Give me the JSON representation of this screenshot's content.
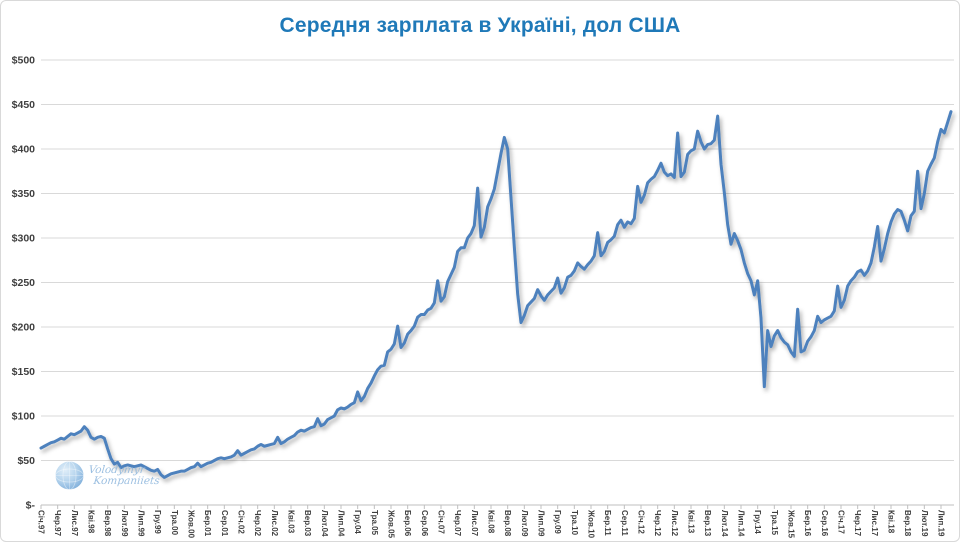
{
  "chart_data": {
    "type": "line",
    "title": "Середня зарплата в Україні, дол США",
    "ylim": [
      0,
      500
    ],
    "grid": "horizontal",
    "legend": "none",
    "y_ticks": [
      0,
      50,
      100,
      150,
      200,
      250,
      300,
      350,
      400,
      450,
      500
    ],
    "y_tick_labels": [
      "$-",
      "$50",
      "$100",
      "$150",
      "$200",
      "$250",
      "$300",
      "$350",
      "$400",
      "$450",
      "$500"
    ],
    "x_label_step_months": 5,
    "x_labels": [
      "Січ.97",
      "Чер.97",
      "Лис.97",
      "Кві.98",
      "Вер.98",
      "Лют.99",
      "Лип.99",
      "Гру.99",
      "Тра.00",
      "Жов.00",
      "Бер.01",
      "Сер.01",
      "Січ.02",
      "Чер.02",
      "Лис.02",
      "Кві.03",
      "Вер.03",
      "Лют.04",
      "Лип.04",
      "Гру.04",
      "Тра.05",
      "Жов.05",
      "Бер.06",
      "Сер.06",
      "Січ.07",
      "Чер.07",
      "Лис.07",
      "Кві.08",
      "Вер.08",
      "Лют.09",
      "Лип.09",
      "Гру.09",
      "Тра.10",
      "Жов.10",
      "Бер.11",
      "Сер.11",
      "Січ.12",
      "Чер.12",
      "Лис.12",
      "Кві.13",
      "Вер.13",
      "Лют.14",
      "Лип.14",
      "Гру.14",
      "Тра.15",
      "Жов.15",
      "Бер.16",
      "Сер.16",
      "Січ.17",
      "Чер.17",
      "Лис.17",
      "Кві.18",
      "Вер.18",
      "Лют.19",
      "Лип.19"
    ],
    "values": [
      64,
      66,
      68,
      70,
      71,
      73,
      75,
      74,
      77,
      80,
      79,
      81,
      83,
      88,
      84,
      76,
      74,
      76,
      77,
      75,
      63,
      52,
      46,
      48,
      42,
      44,
      45,
      44,
      43,
      44,
      45,
      43,
      41,
      39,
      38,
      40,
      34,
      31,
      33,
      35,
      36,
      37,
      38,
      38,
      40,
      42,
      43,
      47,
      43,
      45,
      47,
      48,
      50,
      52,
      53,
      52,
      53,
      54,
      56,
      61,
      56,
      58,
      60,
      62,
      63,
      66,
      68,
      66,
      67,
      68,
      69,
      76,
      69,
      71,
      74,
      76,
      78,
      82,
      84,
      83,
      85,
      87,
      88,
      97,
      89,
      91,
      96,
      98,
      100,
      107,
      109,
      108,
      110,
      113,
      115,
      127,
      117,
      122,
      131,
      137,
      145,
      152,
      156,
      157,
      172,
      175,
      181,
      201,
      177,
      182,
      192,
      196,
      201,
      211,
      214,
      214,
      219,
      221,
      227,
      252,
      229,
      234,
      251,
      259,
      267,
      285,
      289,
      289,
      300,
      305,
      314,
      356,
      301,
      312,
      335,
      344,
      355,
      375,
      395,
      413,
      400,
      345,
      290,
      237,
      205,
      213,
      224,
      228,
      232,
      242,
      235,
      230,
      236,
      240,
      244,
      255,
      238,
      244,
      256,
      258,
      263,
      272,
      268,
      265,
      270,
      274,
      280,
      306,
      280,
      285,
      295,
      298,
      302,
      315,
      320,
      312,
      318,
      316,
      322,
      358,
      340,
      348,
      362,
      366,
      369,
      376,
      384,
      374,
      370,
      372,
      368,
      418,
      369,
      374,
      394,
      398,
      400,
      420,
      408,
      400,
      405,
      406,
      410,
      437,
      383,
      351,
      315,
      293,
      305,
      297,
      287,
      272,
      260,
      252,
      236,
      252,
      210,
      133,
      196,
      178,
      190,
      196,
      188,
      183,
      180,
      172,
      167,
      220,
      172,
      174,
      184,
      189,
      196,
      212,
      205,
      208,
      210,
      212,
      218,
      246,
      222,
      230,
      246,
      252,
      256,
      262,
      264,
      258,
      263,
      272,
      290,
      313,
      274,
      288,
      305,
      318,
      327,
      332,
      330,
      320,
      308,
      325,
      330,
      375,
      333,
      350,
      375,
      383,
      390,
      408,
      422,
      418,
      430,
      442
    ]
  },
  "watermark": {
    "line1": "Volodymyr",
    "line2": "Kompaniiets"
  },
  "colors": {
    "line": "#4E81BD",
    "title": "#1F79B8",
    "grid": "#D9D9D9",
    "axis": "#BFBFBF",
    "axis_text": "#3F3F3F",
    "watermark_text": "#8BB5DC"
  }
}
